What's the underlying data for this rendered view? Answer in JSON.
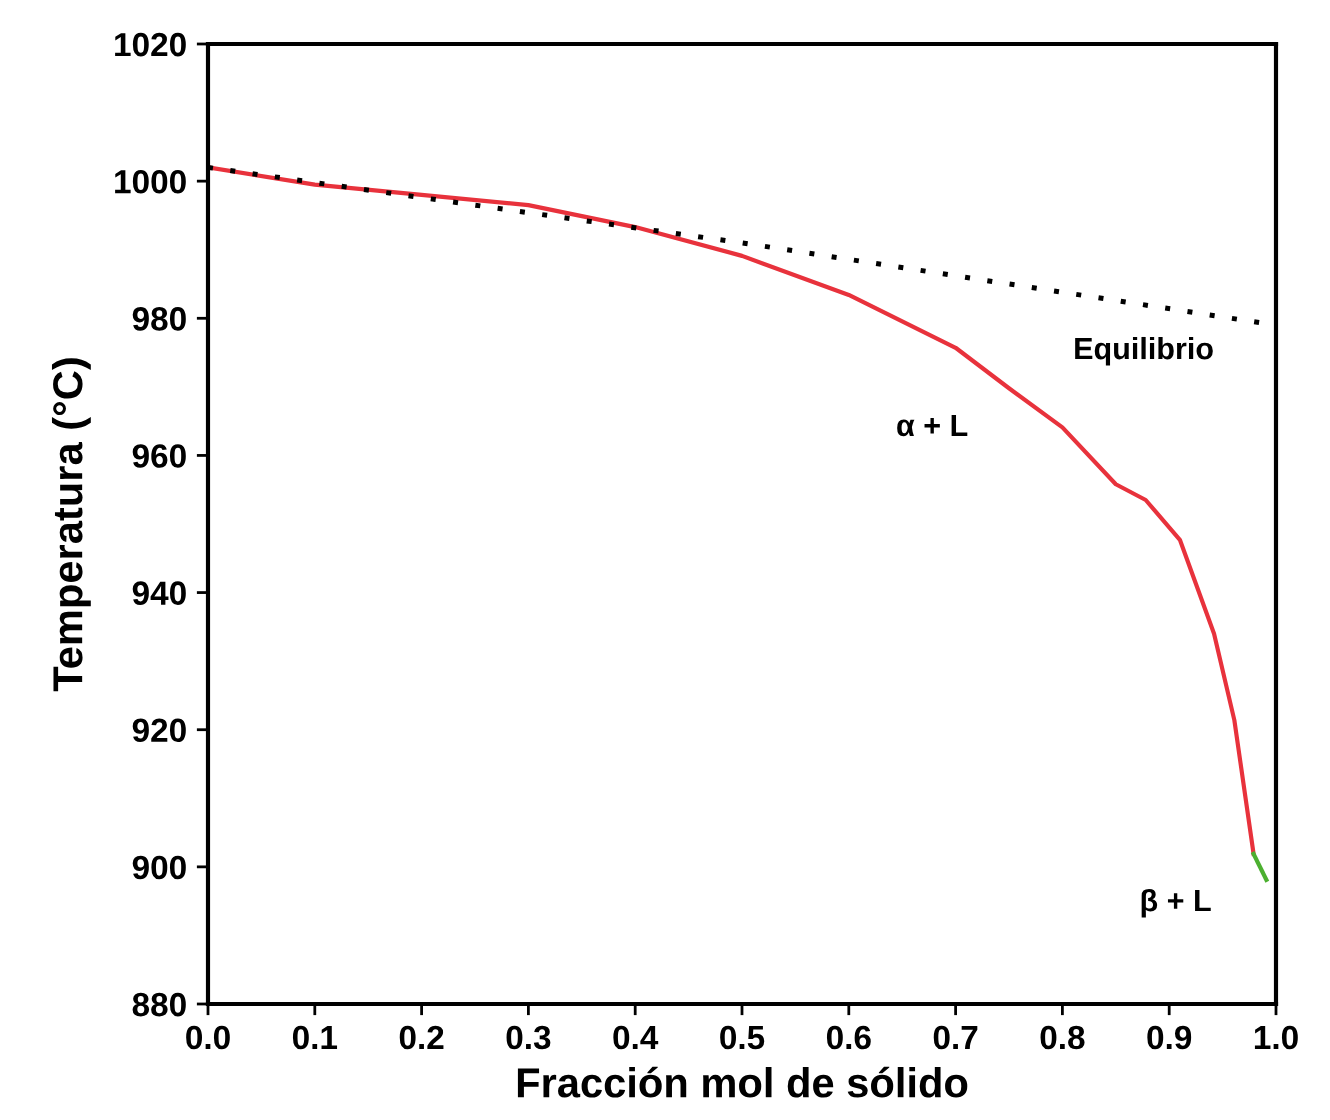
{
  "chart_data": {
    "type": "line",
    "xlabel": "Fracción mol de sólido",
    "ylabel": "Temperatura (°C)",
    "series": [
      {
        "color": "#e8323c",
        "line_style": "solid",
        "x": [
          0,
          0.1,
          0.2,
          0.3,
          0.4,
          0.5,
          0.6,
          0.7,
          0.75,
          0.8,
          0.85,
          0.878,
          0.91,
          0.942,
          0.961,
          0.979
        ],
        "values": [
          1002,
          999.5,
          998,
          996.5,
          993.3,
          989.1,
          983.4,
          975.7,
          969.8,
          964.1,
          955.8,
          953.5,
          947.7,
          934,
          921.4,
          901.9
        ]
      },
      {
        "color": "#4cb030",
        "line_style": "solid",
        "x": [
          0.979,
          0.991
        ],
        "values": [
          901.9,
          898.1
        ]
      },
      {
        "color": "#000000",
        "line_style": "dotted",
        "x": [
          0,
          0.5,
          1.0
        ],
        "values": [
          1002,
          991,
          979
        ]
      }
    ],
    "xlim": [
      0,
      1
    ],
    "ylim": [
      880,
      1020
    ],
    "xticks": [
      {
        "value": 0,
        "label": "0.0"
      },
      0.1,
      0.2,
      0.3,
      0.4,
      0.5,
      0.6,
      0.7,
      0.8,
      0.9,
      {
        "value": 1,
        "label": "1.0"
      }
    ],
    "yticks": [
      880,
      900,
      920,
      940,
      960,
      980,
      1000,
      1020
    ],
    "grid": false,
    "legend": false,
    "marker": "none",
    "annotations": [
      "Equilibrio",
      "α + L",
      "β + L"
    ]
  }
}
